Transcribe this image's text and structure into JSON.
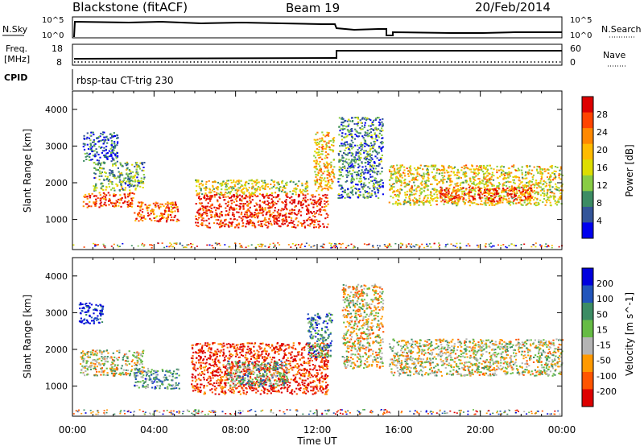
{
  "header": {
    "station": "Blackstone (fitACF)",
    "beam": "Beam 19",
    "date": "20/Feb/2014"
  },
  "noise_panel": {
    "left_label": "N.Sky",
    "left_ticks": [
      "10^5",
      "10^0"
    ],
    "right_ticks": [
      "10^5",
      "10^0"
    ],
    "right_label": "N.Search"
  },
  "freq_panel": {
    "left_label_line1": "Freq.",
    "left_label_line2": "[MHz]",
    "left_ticks": [
      "18",
      "8"
    ],
    "right_ticks": [
      "60",
      "0"
    ],
    "right_label": "Nave"
  },
  "cpid": {
    "label": "CPID",
    "value": "rbsp-tau CT-trig 230"
  },
  "axes": {
    "ylabel": "Slant Range [km]",
    "xlabel": "Time UT",
    "yticks": [
      "4000",
      "3000",
      "2000",
      "1000"
    ],
    "xticks": [
      "00:00",
      "04:00",
      "08:00",
      "12:00",
      "16:00",
      "20:00",
      "00:00"
    ]
  },
  "chart_data": [
    {
      "type": "heatmap",
      "title": "",
      "xlabel": "",
      "ylabel": "Slant Range [km]",
      "xlim": [
        0,
        24
      ],
      "ylim": [
        180,
        4500
      ],
      "colorbar": {
        "label": "Power [dB]",
        "ticks": [
          "28",
          "24",
          "20",
          "16",
          "12",
          "8",
          "4"
        ],
        "colors": [
          "#dd0000",
          "#ff4400",
          "#ff8800",
          "#ffbb00",
          "#dddd00",
          "#88cc44",
          "#3c8c64",
          "#335599",
          "#0000ee"
        ]
      },
      "bands": [
        {
          "t0": 0.5,
          "t1": 3.0,
          "r0": 1350,
          "r1": 1750,
          "level": 0.85
        },
        {
          "t0": 1.0,
          "t1": 3.5,
          "r0": 1800,
          "r1": 2600,
          "level": 0.35
        },
        {
          "t0": 0.5,
          "t1": 2.2,
          "r0": 2600,
          "r1": 3400,
          "level": 0.15
        },
        {
          "t0": 3.0,
          "t1": 5.2,
          "r0": 950,
          "r1": 1500,
          "level": 0.8
        },
        {
          "t0": 6.0,
          "t1": 12.5,
          "r0": 800,
          "r1": 1700,
          "level": 0.9
        },
        {
          "t0": 6.0,
          "t1": 11.5,
          "r0": 1700,
          "r1": 2100,
          "level": 0.5
        },
        {
          "t0": 11.8,
          "t1": 12.8,
          "r0": 1800,
          "r1": 3400,
          "level": 0.6
        },
        {
          "t0": 13.0,
          "t1": 15.2,
          "r0": 1600,
          "r1": 3800,
          "level": 0.25
        },
        {
          "t0": 15.5,
          "t1": 24.0,
          "r0": 1400,
          "r1": 2500,
          "level": 0.55
        },
        {
          "t0": 18.0,
          "t1": 22.5,
          "r0": 1500,
          "r1": 1900,
          "level": 0.85
        }
      ]
    },
    {
      "type": "heatmap",
      "title": "",
      "xlabel": "Time UT",
      "ylabel": "Slant Range [km]",
      "xlim": [
        0,
        24
      ],
      "ylim": [
        180,
        4500
      ],
      "colorbar": {
        "label": "Velocity [m s^-1]",
        "ticks": [
          "200",
          "100",
          "50",
          "15",
          "-15",
          "-50",
          "-100",
          "-200"
        ],
        "colors": [
          "#0000dd",
          "#2255bb",
          "#3c8c64",
          "#66bb44",
          "#b4b4b4",
          "#ff9900",
          "#ff5500",
          "#dd0000"
        ]
      },
      "bands": [
        {
          "t0": 0.3,
          "t1": 3.5,
          "r0": 1300,
          "r1": 2000,
          "level": 0.45
        },
        {
          "t0": 0.3,
          "t1": 1.5,
          "r0": 2700,
          "r1": 3300,
          "level": 0.95
        },
        {
          "t0": 3.0,
          "t1": 5.2,
          "r0": 950,
          "r1": 1500,
          "level": 0.65
        },
        {
          "t0": 5.8,
          "t1": 12.5,
          "r0": 800,
          "r1": 2200,
          "level": 0.1
        },
        {
          "t0": 7.5,
          "t1": 10.5,
          "r0": 1000,
          "r1": 1700,
          "level": 0.6
        },
        {
          "t0": 11.5,
          "t1": 12.7,
          "r0": 1800,
          "r1": 3000,
          "level": 0.7
        },
        {
          "t0": 13.2,
          "t1": 15.2,
          "r0": 1500,
          "r1": 3800,
          "level": 0.4
        },
        {
          "t0": 15.5,
          "t1": 24.0,
          "r0": 1300,
          "r1": 2300,
          "level": 0.45
        }
      ]
    }
  ]
}
